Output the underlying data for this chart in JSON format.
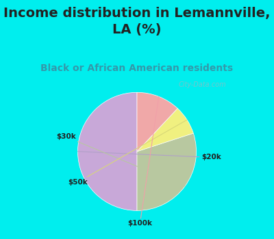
{
  "title": "Income distribution in Lemannville,\nLA (%)",
  "subtitle": "Black or African American residents",
  "labels": [
    "$20k",
    "$30k",
    "$50k",
    "$100k"
  ],
  "values": [
    50,
    30,
    8,
    12
  ],
  "colors": [
    "#c8a8d8",
    "#b8c8a0",
    "#f0f080",
    "#f0a8a8"
  ],
  "background_cyan": "#00eeee",
  "background_chart": "#ddeee4",
  "title_color": "#222222",
  "subtitle_color": "#3399aa",
  "startangle": 90,
  "title_fontsize": 14,
  "subtitle_fontsize": 10,
  "watermark": "City-Data.com",
  "label_line_colors": [
    "#b8a0d0",
    "#c8d8a0",
    "#e8e870",
    "#f0b0b0"
  ]
}
